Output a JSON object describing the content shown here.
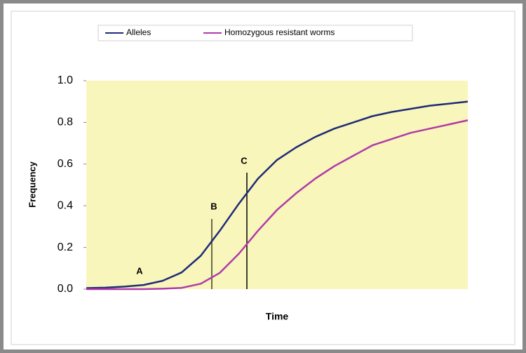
{
  "chart_data": {
    "type": "line",
    "x_label": "Time",
    "y_label": "Frequency",
    "categories": [
      null,
      null,
      null,
      null,
      null,
      null,
      null,
      null,
      null,
      null,
      null,
      null,
      null,
      null,
      null,
      null,
      null,
      null,
      null,
      null,
      null
    ],
    "series": [
      {
        "name": "Alleles",
        "color": "#1f2a78",
        "values": [
          0.005,
          0.007,
          0.012,
          0.02,
          0.04,
          0.08,
          0.16,
          0.28,
          0.41,
          0.53,
          0.62,
          0.68,
          0.73,
          0.77,
          0.8,
          0.83,
          0.85,
          0.865,
          0.88,
          0.89,
          0.9
        ]
      },
      {
        "name": "Homozygous resistant worms",
        "color": "#b03aa8",
        "values": [
          0,
          0,
          0,
          0,
          0.002,
          0.006,
          0.026,
          0.078,
          0.17,
          0.28,
          0.38,
          0.46,
          0.53,
          0.59,
          0.64,
          0.69,
          0.72,
          0.75,
          0.77,
          0.79,
          0.81
        ]
      }
    ],
    "ylim": [
      0,
      1
    ],
    "yticks": [
      {
        "value": 0,
        "label": "0.0"
      },
      {
        "value": 0.2,
        "label": "0.2"
      },
      {
        "value": 0.4,
        "label": "0.4"
      },
      {
        "value": 0.6,
        "label": "0.6"
      },
      {
        "value": 0.8,
        "label": "0.8"
      },
      {
        "value": 1,
        "label": "1.0"
      }
    ],
    "annotations": [
      {
        "text": "A"
      },
      {
        "text": "B"
      },
      {
        "text": "C"
      }
    ],
    "legend": "top"
  }
}
